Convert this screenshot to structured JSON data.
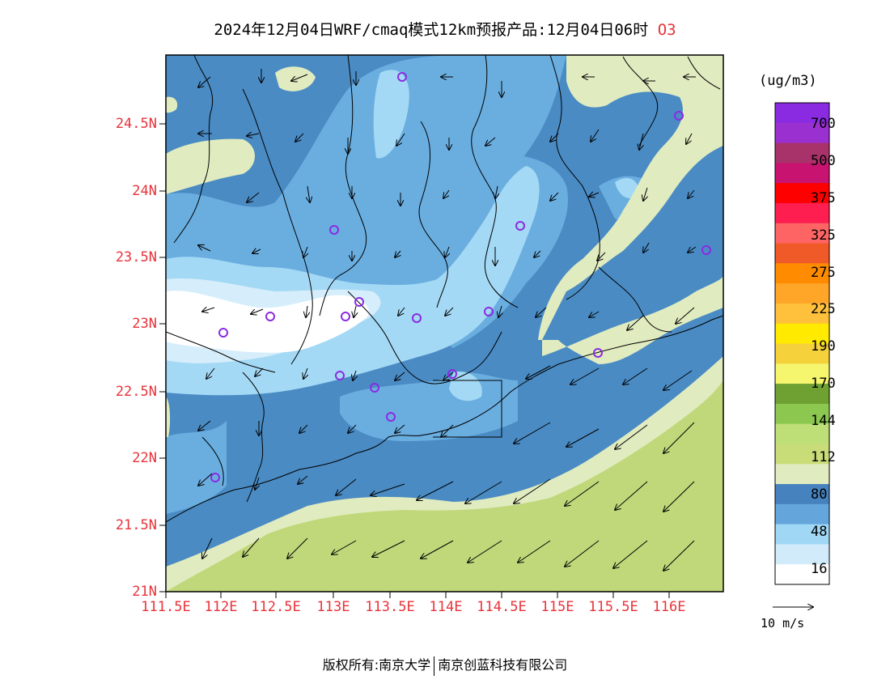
{
  "title": {
    "main": "2024年12月04日WRF/cmaq模式12km预报产品:12月04日06时",
    "species": "O3"
  },
  "map": {
    "lat_ticks": [
      "24.5N",
      "24N",
      "23.5N",
      "23N",
      "22.5N",
      "22N",
      "21.5N",
      "21N"
    ],
    "lon_ticks": [
      "111.5E",
      "112E",
      "112.5E",
      "113E",
      "113.5E",
      "114E",
      "114.5E",
      "115E",
      "115.5E",
      "116E"
    ],
    "lat_range": [
      21,
      25
    ],
    "lon_range": [
      111.5,
      116.6
    ]
  },
  "legend": {
    "units": "(ug/m3)",
    "levels": [
      "700",
      "500",
      "375",
      "325",
      "275",
      "225",
      "190",
      "170",
      "144",
      "112",
      "80",
      "48",
      "16"
    ],
    "colors": [
      "#8a2be2",
      "#9b30d0",
      "#a8326a",
      "#c81470",
      "#ff0000",
      "#ff1e50",
      "#ff6464",
      "#f05a28",
      "#ff8c00",
      "#ffa628",
      "#ffc03c",
      "#ffea00",
      "#f5d23c",
      "#f5f56e",
      "#6ea032",
      "#8cc850",
      "#bede78",
      "#c8dc78",
      "#e0ebc0",
      "#4682be",
      "#64a5dc",
      "#a0d7f5",
      "#d2ebfa",
      "#ffffff"
    ]
  },
  "wind_scale": {
    "label": "10 m/s"
  },
  "footer": {
    "left": "版权所有:南京大学",
    "right": "南京创蓝科技有限公司"
  },
  "colors": {
    "accent_red": "#e8333a",
    "sea_green": "#c0d87a",
    "pale_green": "#e0ebc0",
    "blue_dark": "#4a8bc4",
    "blue_mid": "#6aaee0",
    "blue_light": "#a4d9f5",
    "blue_pale": "#d6eefb"
  }
}
